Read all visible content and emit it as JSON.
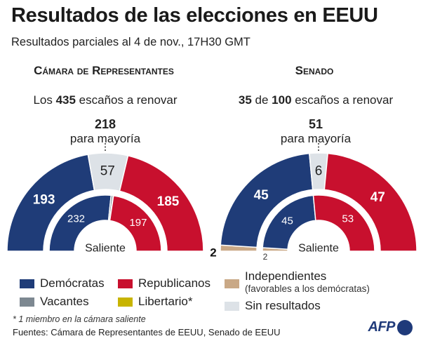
{
  "header": {
    "title": "Resultados de las elecciones en EEUU",
    "subtitle": "Resultados parciales al 4 de nov., 17H30 GMT"
  },
  "colors": {
    "dem": "#1f3c78",
    "rep": "#c8102e",
    "vacant": "#7d8891",
    "libertarian": "#c8b400",
    "independent": "#c9a886",
    "no_results": "#dde2e7"
  },
  "chart_data": [
    {
      "type": "donut",
      "name": "Cámara de Representantes",
      "title": "Cámara de Representantes",
      "seats_prefix": "Los ",
      "seats_total": "435",
      "seats_suffix": " escaños a renovar",
      "majority_value": "218",
      "majority_label": "para mayoría",
      "total": 435,
      "outer": [
        {
          "party": "dem",
          "value": 193,
          "label": "193"
        },
        {
          "party": "no_results",
          "value": 57,
          "label": "57"
        },
        {
          "party": "rep",
          "value": 185,
          "label": "185"
        }
      ],
      "inner_label": "Saliente",
      "inner": [
        {
          "party": "dem",
          "value": 232,
          "label": "232"
        },
        {
          "party": "vacant",
          "value": 5,
          "label": ""
        },
        {
          "party": "libertarian",
          "value": 1,
          "label": ""
        },
        {
          "party": "rep",
          "value": 197,
          "label": "197"
        }
      ]
    },
    {
      "type": "donut",
      "name": "Senado",
      "title": "Senado",
      "seats_prefix": "",
      "seats_total": "35",
      "seats_mid": " de ",
      "seats_total2": "100",
      "seats_suffix": " escaños a renovar",
      "majority_value": "51",
      "majority_label": "para mayoría",
      "total": 100,
      "outer": [
        {
          "party": "independent",
          "value": 2,
          "label": "2"
        },
        {
          "party": "dem",
          "value": 45,
          "label": "45"
        },
        {
          "party": "no_results",
          "value": 6,
          "label": "6"
        },
        {
          "party": "rep",
          "value": 47,
          "label": "47"
        }
      ],
      "inner_label": "Saliente",
      "inner": [
        {
          "party": "independent",
          "value": 2,
          "label": "2"
        },
        {
          "party": "dem",
          "value": 45,
          "label": "45"
        },
        {
          "party": "rep",
          "value": 53,
          "label": "53"
        }
      ]
    }
  ],
  "legend": {
    "dem": "Demócratas",
    "rep": "Republicanos",
    "independent": "Independientes",
    "independent_sub": "(favorables a los demócratas)",
    "vacant": "Vacantes",
    "libertarian": "Libertario*",
    "no_results": "Sin resultados"
  },
  "footnote": "* 1 miembro en la cámara saliente",
  "sources": "Fuentes: Cámara de Representantes de EEUU, Senado de EEUU",
  "logo": "AFP"
}
